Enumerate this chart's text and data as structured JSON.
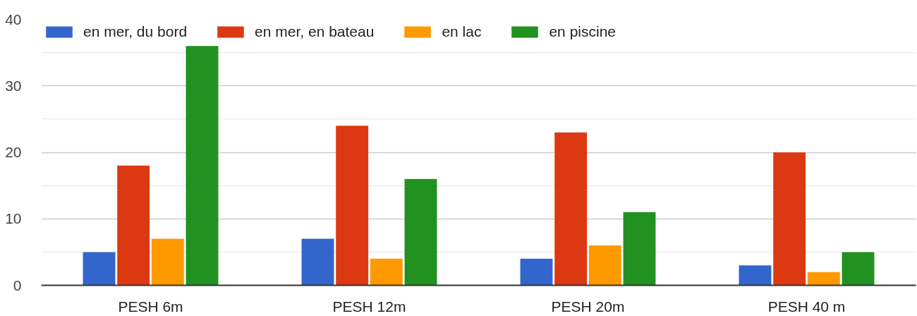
{
  "chart_data": {
    "type": "bar",
    "categories": [
      "PESH 6m",
      "PESH 12m",
      "PESH 20m",
      "PESH 40 m"
    ],
    "series": [
      {
        "name": "en mer, du bord",
        "color": "#3366cc",
        "values": [
          5,
          7,
          4,
          3
        ]
      },
      {
        "name": "en mer, en bateau",
        "color": "#dc3912",
        "values": [
          18,
          24,
          23,
          20
        ]
      },
      {
        "name": "en lac",
        "color": "#ff9900",
        "values": [
          7,
          4,
          6,
          2
        ]
      },
      {
        "name": "en piscine",
        "color": "#21921f",
        "values": [
          36,
          16,
          11,
          5
        ]
      }
    ],
    "ylim": [
      0,
      40
    ],
    "yticks": [
      0,
      10,
      20,
      30,
      40
    ],
    "grid": "y",
    "legend": "top left"
  }
}
